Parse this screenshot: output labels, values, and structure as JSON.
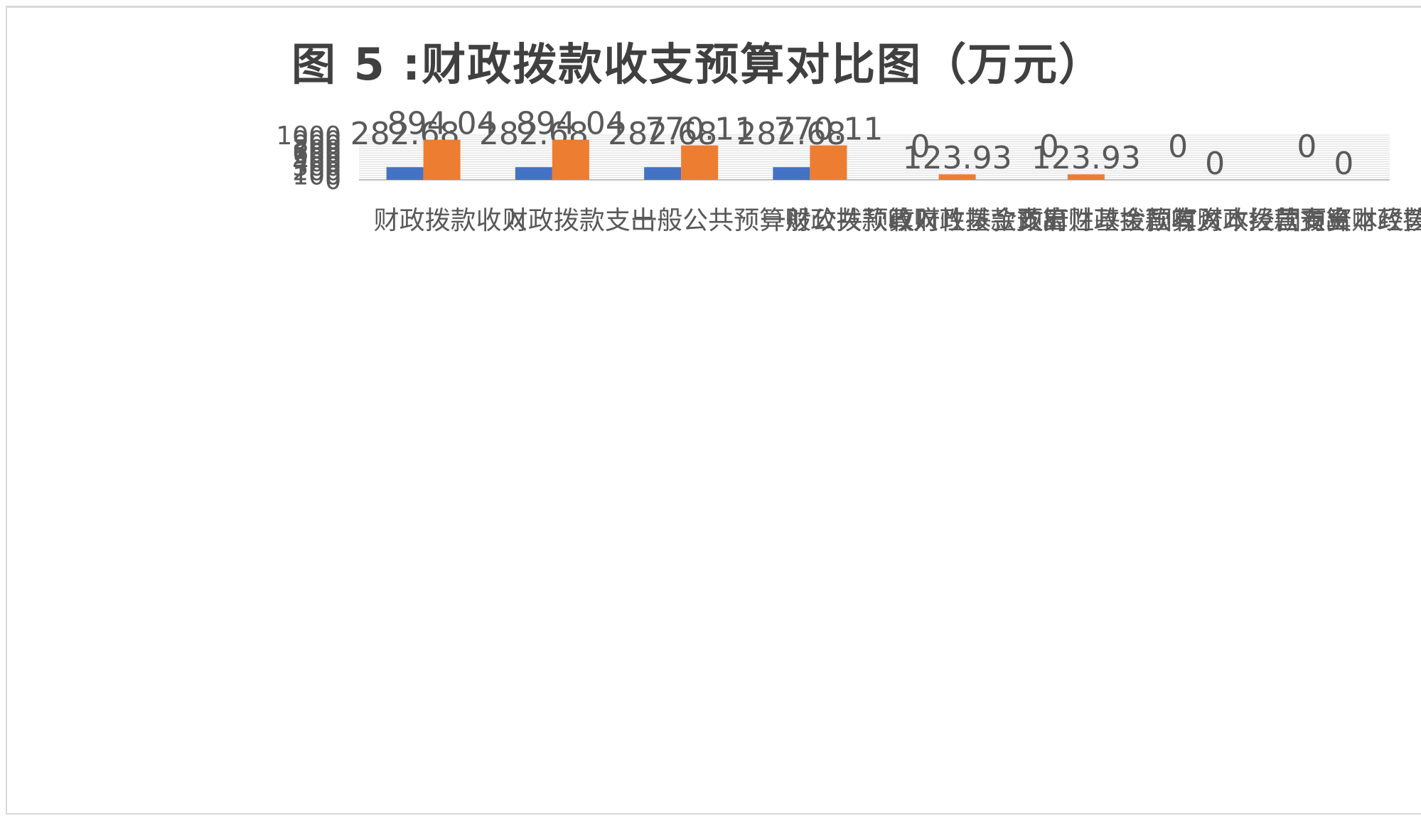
{
  "chart_data": {
    "type": "bar",
    "title": "图  5 :财政拨款收支预算对比图（万元）",
    "categories": [
      "财政拨款收入",
      "财政拨款支出",
      "一般公共预算财政拨款收入",
      "一般公共预算财政拨款支出",
      "政府性基金预算财政拨款收入",
      "政府性基金预算财政拨款支出",
      "国有资本经营预算财政拨款收入",
      "国有资本经营预算财政拨款支出"
    ],
    "series": [
      {
        "values": [
          282.68,
          282.68,
          282.68,
          282.68,
          0,
          0,
          0,
          0
        ]
      },
      {
        "values": [
          894.04,
          894.04,
          770.11,
          770.11,
          123.93,
          123.93,
          0,
          0
        ]
      }
    ],
    "ylim": [
      0,
      1000
    ],
    "grid": true,
    "colors": {
      "series1": "#4472c4",
      "series2": "#ed7d31",
      "grid": "#d9d9d9",
      "text": "#595959"
    }
  }
}
